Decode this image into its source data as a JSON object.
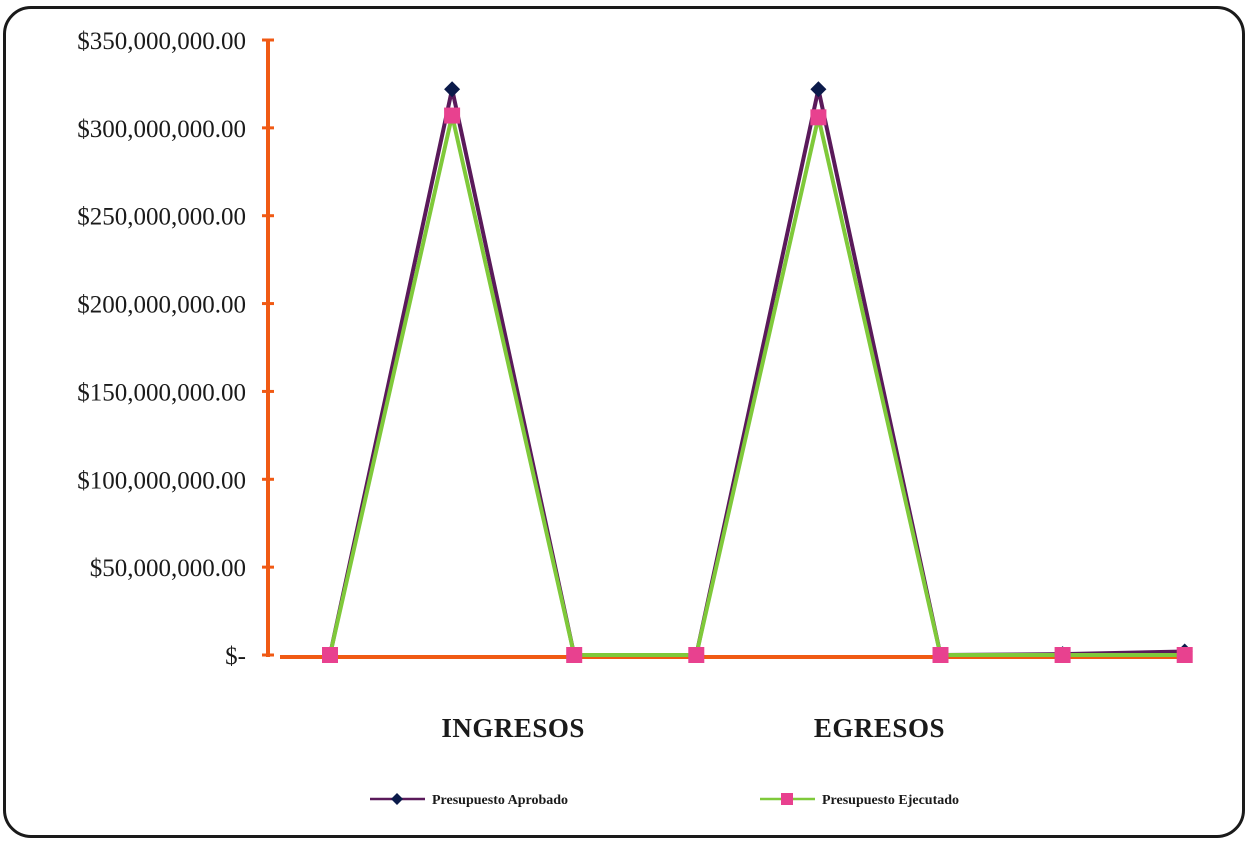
{
  "chart_data": {
    "type": "line",
    "x": [
      1,
      2,
      3,
      4,
      5,
      6,
      7,
      8
    ],
    "categories": [
      "INGRESOS",
      "EGRESOS"
    ],
    "category_positions": [
      2.5,
      5.5
    ],
    "yticks": [
      "$350,000,000.00",
      "$300,000,000.00",
      "$250,000,000.00",
      "$200,000,000.00",
      "$150,000,000.00",
      "$100,000,000.00",
      "$50,000,000.00",
      "$-"
    ],
    "ylim": [
      0,
      350000000
    ],
    "series": [
      {
        "name": "Presupuesto Aprobado",
        "line_color": "#5a1a5a",
        "marker_color": "#0b1a4a",
        "marker": "diamond",
        "values": [
          0,
          322000000,
          0,
          0,
          322000000,
          0,
          500000,
          2000000
        ]
      },
      {
        "name": "Presupuesto Ejecutado",
        "line_color": "#7fc93a",
        "marker_color": "#e8418f",
        "marker": "square",
        "values": [
          0,
          307000000,
          0,
          0,
          306000000,
          0,
          0,
          0
        ]
      }
    ],
    "axis_color": "#f05a14",
    "legend_position": "bottom"
  }
}
